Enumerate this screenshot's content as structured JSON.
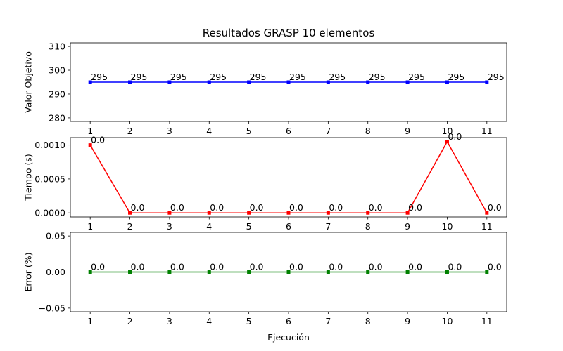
{
  "chart_data": [
    {
      "type": "line",
      "title": "Resultados GRASP 10 elementos",
      "xlabel": "",
      "ylabel": "Valor Objetivo",
      "x": [
        1,
        2,
        3,
        4,
        5,
        6,
        7,
        8,
        9,
        10,
        11
      ],
      "series": [
        {
          "values": [
            295,
            295,
            295,
            295,
            295,
            295,
            295,
            295,
            295,
            295,
            295
          ],
          "color": "#0000ff",
          "data_labels": [
            "295",
            "295",
            "295",
            "295",
            "295",
            "295",
            "295",
            "295",
            "295",
            "295",
            "295"
          ]
        }
      ],
      "xlim": [
        0.5,
        11.5
      ],
      "ylim": [
        278.5,
        311.5
      ],
      "yticks": [
        280,
        290,
        300,
        310
      ],
      "ytick_labels": [
        "280",
        "290",
        "300",
        "310"
      ],
      "xtick_labels": [
        "1",
        "2",
        "3",
        "4",
        "5",
        "6",
        "7",
        "8",
        "9",
        "10",
        "11"
      ],
      "grid": false
    },
    {
      "type": "line",
      "title": "",
      "xlabel": "",
      "ylabel": "Tiempo (s)",
      "x": [
        1,
        2,
        3,
        4,
        5,
        6,
        7,
        8,
        9,
        10,
        11
      ],
      "series": [
        {
          "values": [
            0.001,
            0,
            0,
            0,
            0,
            0,
            0,
            0,
            0,
            0.00105,
            0
          ],
          "color": "#ff0000",
          "data_labels": [
            "0.0",
            "0.0",
            "0.0",
            "0.0",
            "0.0",
            "0.0",
            "0.0",
            "0.0",
            "0.0",
            "0.0",
            "0.0"
          ]
        }
      ],
      "xlim": [
        0.5,
        11.5
      ],
      "ylim": [
        -6e-05,
        0.00111
      ],
      "yticks": [
        0,
        0.0005,
        0.001
      ],
      "ytick_labels": [
        "0.0000",
        "0.0005",
        "0.0010"
      ],
      "xtick_labels": [
        "1",
        "2",
        "3",
        "4",
        "5",
        "6",
        "7",
        "8",
        "9",
        "10",
        "11"
      ],
      "grid": false
    },
    {
      "type": "line",
      "title": "",
      "xlabel": "Ejecución",
      "ylabel": "Error (%)",
      "x": [
        1,
        2,
        3,
        4,
        5,
        6,
        7,
        8,
        9,
        10,
        11
      ],
      "series": [
        {
          "values": [
            0,
            0,
            0,
            0,
            0,
            0,
            0,
            0,
            0,
            0,
            0
          ],
          "color": "#008000",
          "data_labels": [
            "0.0",
            "0.0",
            "0.0",
            "0.0",
            "0.0",
            "0.0",
            "0.0",
            "0.0",
            "0.0",
            "0.0",
            "0.0"
          ]
        }
      ],
      "xlim": [
        0.5,
        11.5
      ],
      "ylim": [
        -0.055,
        0.055
      ],
      "yticks": [
        -0.05,
        0,
        0.05
      ],
      "ytick_labels": [
        "−0.05",
        "0.00",
        "0.05"
      ],
      "xtick_labels": [
        "1",
        "2",
        "3",
        "4",
        "5",
        "6",
        "7",
        "8",
        "9",
        "10",
        "11"
      ],
      "grid": false
    }
  ]
}
